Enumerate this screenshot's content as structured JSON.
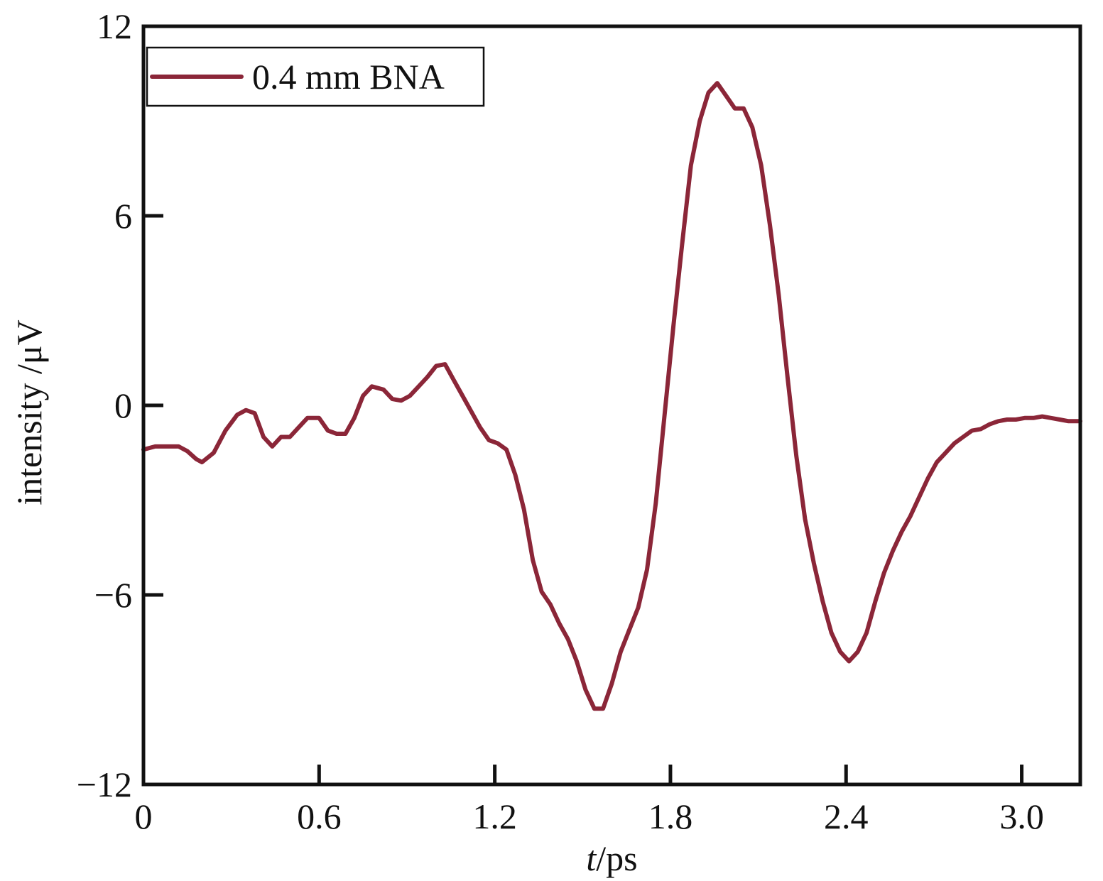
{
  "chart_data": {
    "type": "line",
    "title": "",
    "xlabel_italic": "t",
    "xlabel_rest": "/ps",
    "ylabel": "intensity /μV",
    "xlim": [
      0,
      3.2
    ],
    "ylim": [
      -12,
      12
    ],
    "xticks": [
      0,
      0.6,
      1.2,
      1.8,
      2.4,
      3.0
    ],
    "xtick_labels": [
      "0",
      "0.6",
      "1.2",
      "1.8",
      "2.4",
      "3.0"
    ],
    "yticks": [
      -12,
      -6,
      0,
      6,
      12
    ],
    "ytick_labels": [
      "−12",
      "−6",
      "0",
      "6",
      "12"
    ],
    "grid": false,
    "legend_position": "top-left",
    "series": [
      {
        "name": "0.4 mm BNA",
        "color": "#8B2638",
        "x": [
          0,
          0.04,
          0.08,
          0.12,
          0.15,
          0.18,
          0.2,
          0.24,
          0.28,
          0.32,
          0.35,
          0.38,
          0.41,
          0.44,
          0.47,
          0.5,
          0.53,
          0.56,
          0.6,
          0.63,
          0.66,
          0.69,
          0.72,
          0.75,
          0.78,
          0.82,
          0.85,
          0.88,
          0.91,
          0.94,
          0.97,
          1.0,
          1.03,
          1.06,
          1.09,
          1.12,
          1.15,
          1.18,
          1.21,
          1.24,
          1.27,
          1.3,
          1.33,
          1.36,
          1.39,
          1.42,
          1.45,
          1.48,
          1.51,
          1.54,
          1.57,
          1.6,
          1.63,
          1.66,
          1.69,
          1.72,
          1.75,
          1.78,
          1.81,
          1.84,
          1.87,
          1.9,
          1.93,
          1.96,
          1.99,
          2.02,
          2.05,
          2.08,
          2.11,
          2.14,
          2.17,
          2.2,
          2.23,
          2.26,
          2.29,
          2.32,
          2.35,
          2.38,
          2.41,
          2.44,
          2.47,
          2.5,
          2.53,
          2.56,
          2.59,
          2.62,
          2.65,
          2.68,
          2.71,
          2.74,
          2.77,
          2.8,
          2.83,
          2.86,
          2.89,
          2.92,
          2.95,
          2.98,
          3.01,
          3.04,
          3.07,
          3.1,
          3.13,
          3.16,
          3.2
        ],
        "y": [
          -1.4,
          -1.3,
          -1.3,
          -1.3,
          -1.45,
          -1.7,
          -1.8,
          -1.5,
          -0.8,
          -0.3,
          -0.15,
          -0.25,
          -1.0,
          -1.3,
          -1.0,
          -1.0,
          -0.7,
          -0.4,
          -0.4,
          -0.8,
          -0.9,
          -0.9,
          -0.4,
          0.3,
          0.6,
          0.5,
          0.2,
          0.15,
          0.3,
          0.6,
          0.9,
          1.25,
          1.3,
          0.8,
          0.3,
          -0.2,
          -0.7,
          -1.1,
          -1.2,
          -1.4,
          -2.2,
          -3.3,
          -4.9,
          -5.9,
          -6.3,
          -6.9,
          -7.4,
          -8.1,
          -9.0,
          -9.6,
          -9.6,
          -8.8,
          -7.8,
          -7.1,
          -6.4,
          -5.2,
          -3.1,
          -0.3,
          2.5,
          5.1,
          7.6,
          9.0,
          9.9,
          10.2,
          9.8,
          9.4,
          9.4,
          8.8,
          7.6,
          5.7,
          3.5,
          0.9,
          -1.6,
          -3.6,
          -5.0,
          -6.2,
          -7.2,
          -7.8,
          -8.1,
          -7.8,
          -7.2,
          -6.2,
          -5.3,
          -4.6,
          -4.0,
          -3.5,
          -2.9,
          -2.3,
          -1.8,
          -1.5,
          -1.2,
          -1.0,
          -0.8,
          -0.75,
          -0.6,
          -0.5,
          -0.45,
          -0.45,
          -0.4,
          -0.4,
          -0.35,
          -0.4,
          -0.45,
          -0.5,
          -0.5
        ]
      }
    ]
  }
}
